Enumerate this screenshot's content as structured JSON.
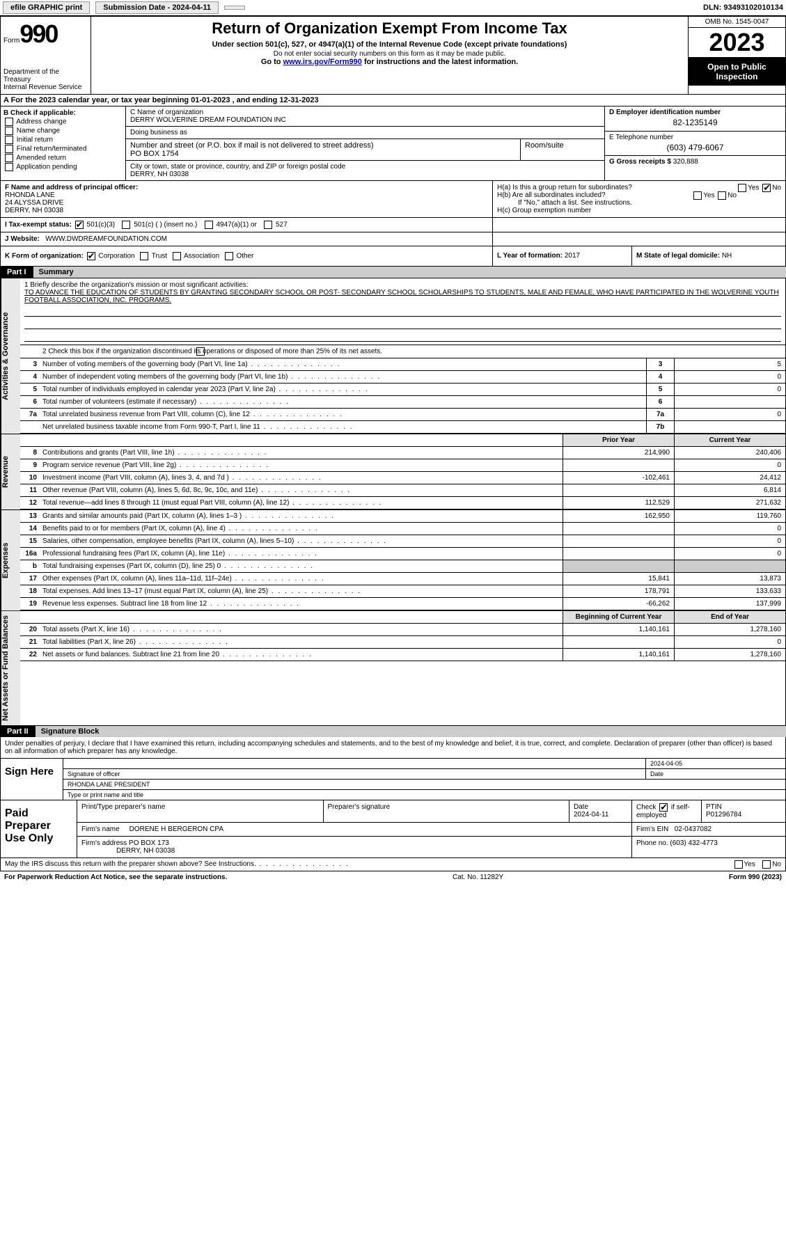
{
  "topbar": {
    "efile": "efile GRAPHIC print",
    "submission": "Submission Date - 2024-04-11",
    "dln": "DLN: 93493102010134"
  },
  "header": {
    "form_prefix": "Form",
    "form_num": "990",
    "title": "Return of Organization Exempt From Income Tax",
    "sub": "Under section 501(c), 527, or 4947(a)(1) of the Internal Revenue Code (except private foundations)",
    "sub2": "Do not enter social security numbers on this form as it may be made public.",
    "link_prefix": "Go to ",
    "link": "www.irs.gov/Form990",
    "link_suffix": " for instructions and the latest information.",
    "dept": "Department of the Treasury\nInternal Revenue Service",
    "omb": "OMB No. 1545-0047",
    "year": "2023",
    "open": "Open to Public Inspection"
  },
  "rowA": "A  For the 2023 calendar year, or tax year beginning 01-01-2023    , and ending 12-31-2023",
  "colB": {
    "label": "B Check if applicable:",
    "items": [
      "Address change",
      "Name change",
      "Initial return",
      "Final return/terminated",
      "Amended return",
      "Application pending"
    ]
  },
  "colC": {
    "name_lbl": "C Name of organization",
    "name": "DERRY WOLVERINE DREAM FOUNDATION INC",
    "dba_lbl": "Doing business as",
    "addr_lbl": "Number and street (or P.O. box if mail is not delivered to street address)",
    "room_lbl": "Room/suite",
    "addr": "PO BOX 1754",
    "city_lbl": "City or town, state or province, country, and ZIP or foreign postal code",
    "city": "DERRY, NH   03038"
  },
  "colD": {
    "ein_lbl": "D Employer identification number",
    "ein": "82-1235149",
    "tel_lbl": "E Telephone number",
    "tel": "(603) 479-6067",
    "gross_lbl": "G Gross receipts $",
    "gross": "320,888"
  },
  "secF": {
    "lbl": "F  Name and address of principal officer:",
    "name": "RHONDA LANE",
    "addr1": "24 ALYSSA DRIVE",
    "addr2": "DERRY, NH   03038",
    "ha": "H(a)  Is this a group return for subordinates?",
    "hb": "H(b)  Are all subordinates included?",
    "hb_note": "If \"No,\" attach a list. See instructions.",
    "hc": "H(c)  Group exemption number",
    "yes": "Yes",
    "no": "No"
  },
  "rowI": {
    "lbl": "I    Tax-exempt status:",
    "opts": [
      "501(c)(3)",
      "501(c) (  ) (insert no.)",
      "4947(a)(1) or",
      "527"
    ]
  },
  "rowJ": {
    "lbl": "J    Website:",
    "val": "WWW.DWDREAMFOUNDATION.COM"
  },
  "rowK": {
    "lbl": "K Form of organization:",
    "opts": [
      "Corporation",
      "Trust",
      "Association",
      "Other"
    ],
    "l_lbl": "L Year of formation:",
    "l_val": "2017",
    "m_lbl": "M State of legal domicile:",
    "m_val": "NH"
  },
  "part1": {
    "num": "Part I",
    "title": "Summary",
    "tabs": [
      "Activities & Governance",
      "Revenue",
      "Expenses",
      "Net Assets or Fund Balances"
    ],
    "q1_lbl": "1   Briefly describe the organization's mission or most significant activities:",
    "q1": "TO ADVANCE THE EDUCATION OF STUDENTS BY GRANTING SECONDARY SCHOOL OR POST- SECONDARY SCHOOL SCHOLARSHIPS TO STUDENTS, MALE AND FEMALE, WHO HAVE PARTICIPATED IN THE WOLVERINE YOUTH FOOTBALL ASSOCIATION, INC. PROGRAMS.",
    "q2": "2   Check this box         if the organization discontinued its operations or disposed of more than 25% of its net assets.",
    "gov_lines": [
      {
        "n": "3",
        "d": "Number of voting members of the governing body (Part VI, line 1a)",
        "box": "3",
        "v": "5"
      },
      {
        "n": "4",
        "d": "Number of independent voting members of the governing body (Part VI, line 1b)",
        "box": "4",
        "v": "0"
      },
      {
        "n": "5",
        "d": "Total number of individuals employed in calendar year 2023 (Part V, line 2a)",
        "box": "5",
        "v": "0"
      },
      {
        "n": "6",
        "d": "Total number of volunteers (estimate if necessary)",
        "box": "6",
        "v": ""
      },
      {
        "n": "7a",
        "d": "Total unrelated business revenue from Part VIII, column (C), line 12",
        "box": "7a",
        "v": "0"
      },
      {
        "n": "",
        "d": "Net unrelated business taxable income from Form 990-T, Part I, line 11",
        "box": "7b",
        "v": ""
      }
    ],
    "col_hdr": {
      "py": "Prior Year",
      "cy": "Current Year"
    },
    "rev_lines": [
      {
        "n": "8",
        "d": "Contributions and grants (Part VIII, line 1h)",
        "py": "214,990",
        "cy": "240,406"
      },
      {
        "n": "9",
        "d": "Program service revenue (Part VIII, line 2g)",
        "py": "",
        "cy": "0"
      },
      {
        "n": "10",
        "d": "Investment income (Part VIII, column (A), lines 3, 4, and 7d )",
        "py": "-102,461",
        "cy": "24,412"
      },
      {
        "n": "11",
        "d": "Other revenue (Part VIII, column (A), lines 5, 6d, 8c, 9c, 10c, and 11e)",
        "py": "",
        "cy": "6,814"
      },
      {
        "n": "12",
        "d": "Total revenue—add lines 8 through 11 (must equal Part VIII, column (A), line 12)",
        "py": "112,529",
        "cy": "271,632"
      }
    ],
    "exp_lines": [
      {
        "n": "13",
        "d": "Grants and similar amounts paid (Part IX, column (A), lines 1–3 )",
        "py": "162,950",
        "cy": "119,760"
      },
      {
        "n": "14",
        "d": "Benefits paid to or for members (Part IX, column (A), line 4)",
        "py": "",
        "cy": "0"
      },
      {
        "n": "15",
        "d": "Salaries, other compensation, employee benefits (Part IX, column (A), lines 5–10)",
        "py": "",
        "cy": "0"
      },
      {
        "n": "16a",
        "d": "Professional fundraising fees (Part IX, column (A), line 11e)",
        "py": "",
        "cy": "0"
      },
      {
        "n": "b",
        "d": "Total fundraising expenses (Part IX, column (D), line 25) 0",
        "py": "shade",
        "cy": "shade"
      },
      {
        "n": "17",
        "d": "Other expenses (Part IX, column (A), lines 11a–11d, 11f–24e)",
        "py": "15,841",
        "cy": "13,873"
      },
      {
        "n": "18",
        "d": "Total expenses. Add lines 13–17 (must equal Part IX, column (A), line 25)",
        "py": "178,791",
        "cy": "133,633"
      },
      {
        "n": "19",
        "d": "Revenue less expenses. Subtract line 18 from line 12",
        "py": "-66,262",
        "cy": "137,999"
      }
    ],
    "net_hdr": {
      "py": "Beginning of Current Year",
      "cy": "End of Year"
    },
    "net_lines": [
      {
        "n": "20",
        "d": "Total assets (Part X, line 16)",
        "py": "1,140,161",
        "cy": "1,278,160"
      },
      {
        "n": "21",
        "d": "Total liabilities (Part X, line 26)",
        "py": "",
        "cy": "0"
      },
      {
        "n": "22",
        "d": "Net assets or fund balances. Subtract line 21 from line 20",
        "py": "1,140,161",
        "cy": "1,278,160"
      }
    ]
  },
  "part2": {
    "num": "Part II",
    "title": "Signature Block",
    "decl": "Under penalties of perjury, I declare that I have examined this return, including accompanying schedules and statements, and to the best of my knowledge and belief, it is true, correct, and complete. Declaration of preparer (other than officer) is based on all information of which preparer has any knowledge.",
    "sign_lbl": "Sign Here",
    "sig_officer": "Signature of officer",
    "sig_date": "2024-04-05",
    "sig_name": "RHONDA LANE  PRESIDENT",
    "sig_type": "Type or print name and title",
    "date_lbl": "Date",
    "paid_lbl": "Paid Preparer Use Only",
    "prep_name_lbl": "Print/Type preparer's name",
    "prep_sig_lbl": "Preparer's signature",
    "prep_date": "2024-04-11",
    "check_lbl": "Check",
    "self_emp": "if self-employed",
    "ptin_lbl": "PTIN",
    "ptin": "P01296784",
    "firm_name_lbl": "Firm's name",
    "firm_name": "DORENE H BERGERON CPA",
    "firm_ein_lbl": "Firm's EIN",
    "firm_ein": "02-0437082",
    "firm_addr_lbl": "Firm's address",
    "firm_addr": "PO BOX 173",
    "firm_city": "DERRY, NH   03038",
    "phone_lbl": "Phone no.",
    "phone": "(603) 432-4773",
    "discuss": "May the IRS discuss this return with the preparer shown above? See Instructions.",
    "yes": "Yes",
    "no": "No"
  },
  "footer": {
    "pra": "For Paperwork Reduction Act Notice, see the separate instructions.",
    "cat": "Cat. No. 11282Y",
    "form": "Form 990 (2023)"
  }
}
